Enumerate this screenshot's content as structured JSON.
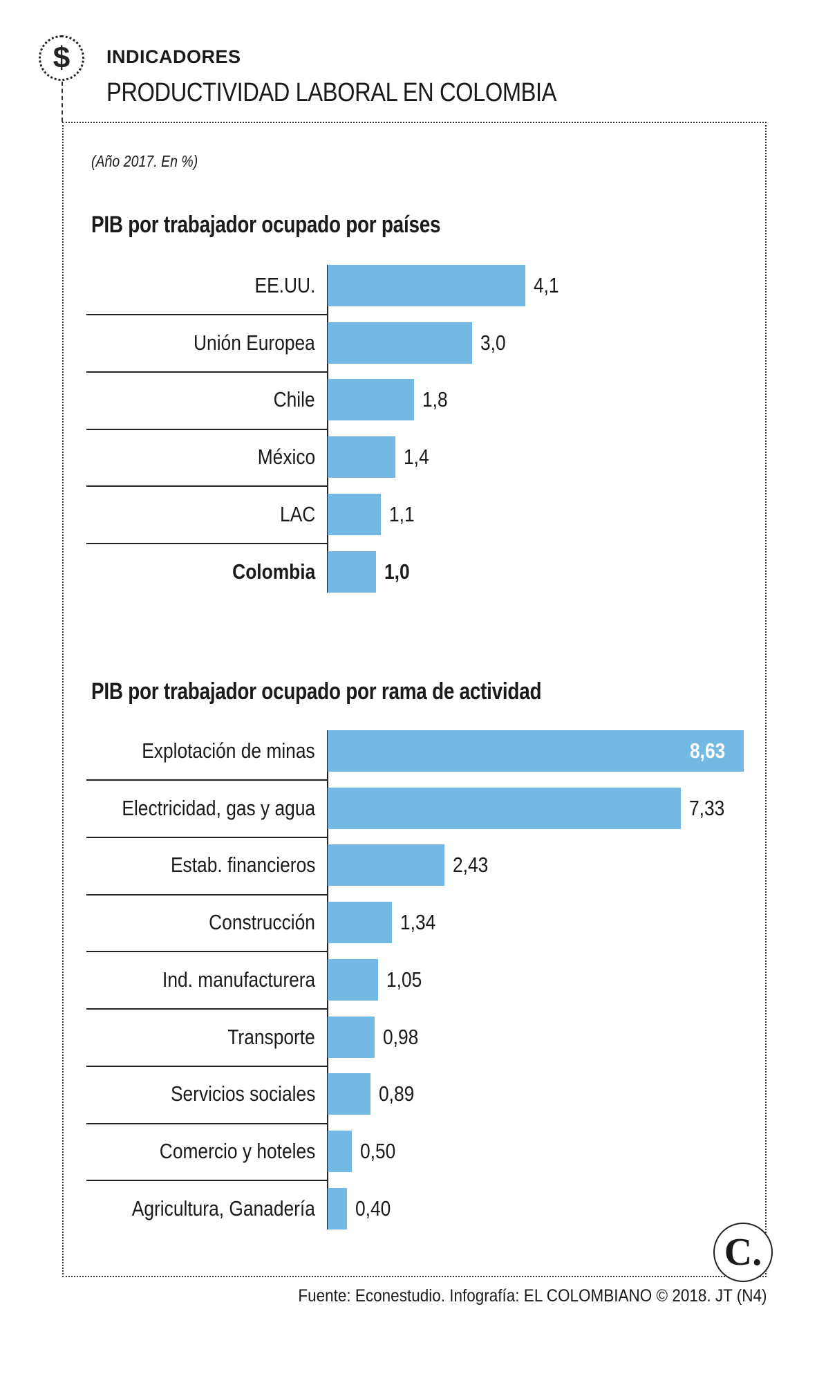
{
  "header": {
    "kicker": "INDICADORES",
    "title": "PRODUCTIVIDAD LABORAL EN COLOMBIA",
    "subtitle": "(Año 2017. En %)",
    "icon": "dollar-icon"
  },
  "chart_data": [
    {
      "type": "bar",
      "orientation": "horizontal",
      "title": "PIB por trabajador ocupado por países",
      "categories": [
        "EE.UU.",
        "Unión Europea",
        "Chile",
        "México",
        "LAC",
        "Colombia"
      ],
      "values": [
        4.1,
        3.0,
        1.8,
        1.4,
        1.1,
        1.0
      ],
      "value_labels": [
        "4,1",
        "3,0",
        "1,8",
        "1,4",
        "1,1",
        "1,0"
      ],
      "highlight": "Colombia",
      "color": "#74b8e4"
    },
    {
      "type": "bar",
      "orientation": "horizontal",
      "title": "PIB por trabajador ocupado por rama de actividad",
      "categories": [
        "Explotación de minas",
        "Electricidad, gas y agua",
        "Estab. financieros",
        "Construcción",
        "Ind. manufacturera",
        "Transporte",
        "Servicios sociales",
        "Comercio y hoteles",
        "Agricultura, Ganadería"
      ],
      "values": [
        8.63,
        7.33,
        2.43,
        1.34,
        1.05,
        0.98,
        0.89,
        0.5,
        0.4
      ],
      "value_labels": [
        "8,63",
        "7,33",
        "2,43",
        "1,34",
        "1,05",
        "0,98",
        "0,89",
        "0,50",
        "0,40"
      ],
      "color": "#74b8e4"
    }
  ],
  "logo": "C.",
  "footer": "Fuente: Econestudio. Infografía: EL COLOMBIANO © 2018. JT (N4)"
}
